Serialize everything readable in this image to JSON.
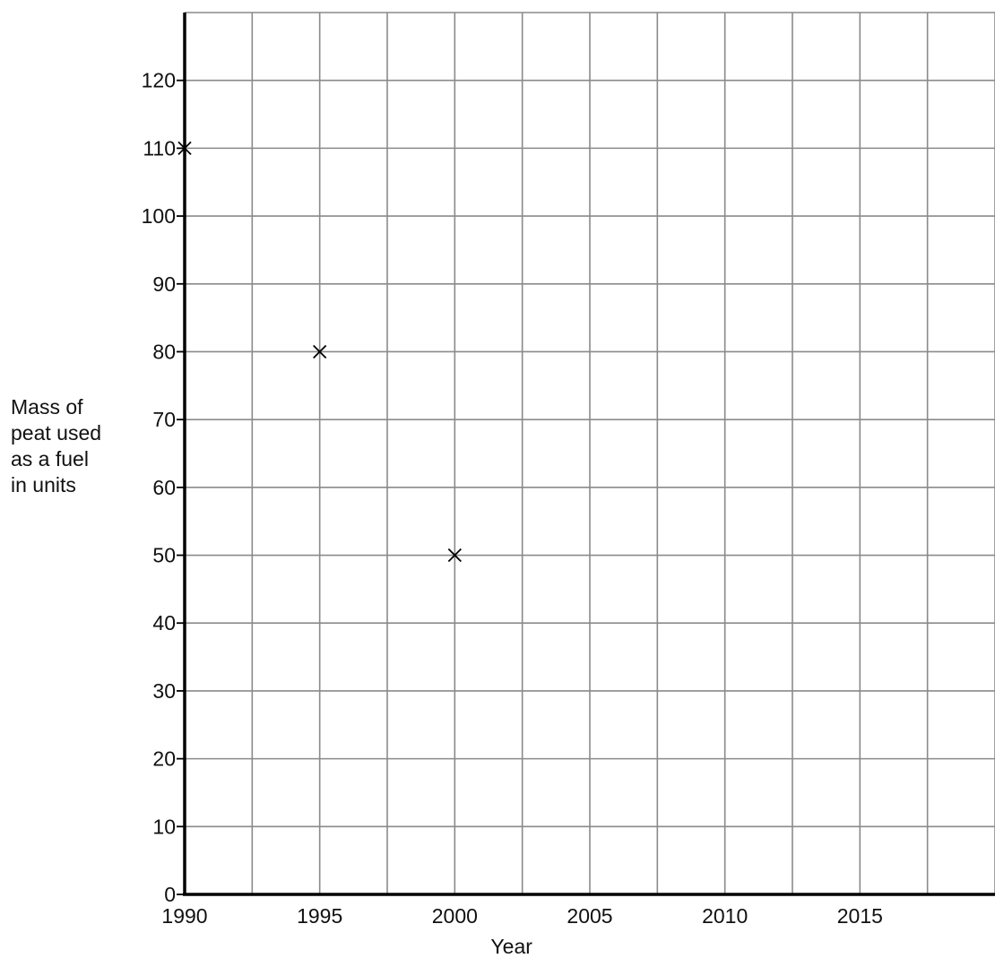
{
  "chart_data": {
    "type": "scatter",
    "title": "",
    "xlabel": "Year",
    "ylabel_lines": [
      "Mass of",
      "peat used",
      "as a fuel",
      "in units"
    ],
    "xlim": [
      1990,
      2020
    ],
    "ylim": [
      0,
      130
    ],
    "x_ticks": [
      1990,
      1995,
      2000,
      2005,
      2010,
      2015
    ],
    "y_ticks": [
      0,
      10,
      20,
      30,
      40,
      50,
      60,
      70,
      80,
      90,
      100,
      110,
      120
    ],
    "x_grid_step": 2.5,
    "y_grid_step": 10,
    "grid": true,
    "marker": "x",
    "points": [
      {
        "x": 1990,
        "y": 110
      },
      {
        "x": 1995,
        "y": 80
      },
      {
        "x": 2000,
        "y": 50
      }
    ]
  }
}
